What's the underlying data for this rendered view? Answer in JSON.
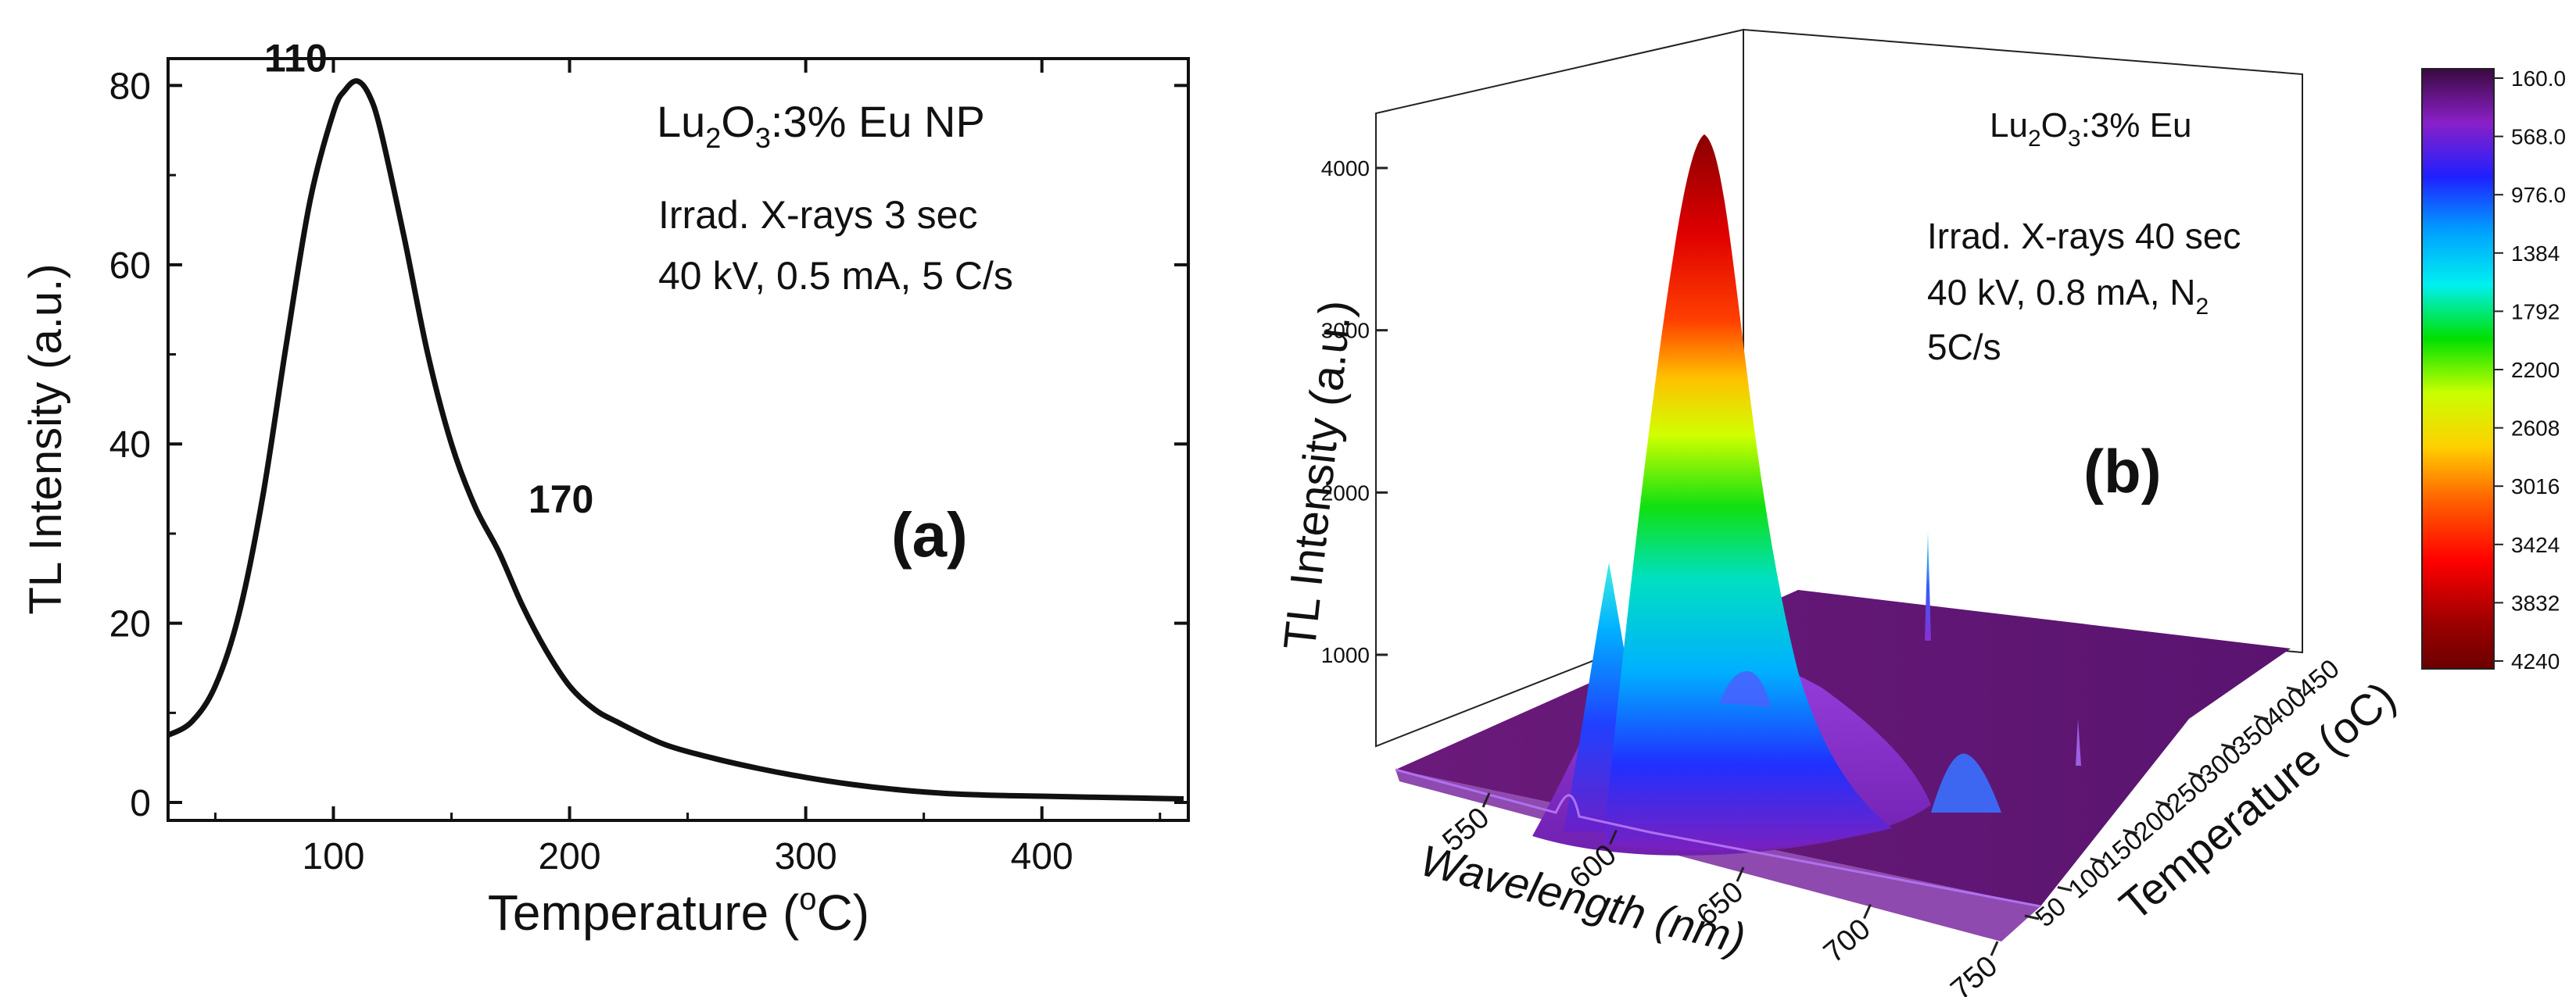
{
  "chart_data": [
    {
      "panel": "a",
      "type": "line",
      "panel_label": "(a)",
      "xlabel_main": "Temperature (",
      "xlabel_sup": "o",
      "xlabel_end": "C)",
      "ylabel": "TL Intensity (a.u.)",
      "xlim": [
        30,
        462
      ],
      "ylim": [
        -2,
        83
      ],
      "xticks": [
        100,
        200,
        300,
        400
      ],
      "yticks": [
        0,
        20,
        40,
        60,
        80
      ],
      "x": [
        30,
        40,
        50,
        60,
        70,
        80,
        90,
        100,
        105,
        110,
        115,
        120,
        130,
        140,
        150,
        160,
        170,
        180,
        190,
        200,
        210,
        220,
        240,
        260,
        280,
        300,
        320,
        340,
        360,
        380,
        400,
        420,
        440,
        460
      ],
      "y": [
        7.5,
        9,
        13,
        21,
        34,
        51,
        67,
        77,
        79.5,
        80.5,
        79,
        75,
        63,
        50,
        40,
        33,
        28,
        22,
        17,
        13,
        10.5,
        9,
        6.5,
        5,
        3.8,
        2.8,
        2.0,
        1.4,
        1.0,
        0.8,
        0.7,
        0.6,
        0.5,
        0.4
      ],
      "annotations": [
        {
          "text": "110",
          "x": 110,
          "y": 80.5
        },
        {
          "text": "170",
          "x": 170,
          "y": 28
        }
      ],
      "legend": {
        "line1_pre": "Lu",
        "line1_sub1": "2",
        "line1_mid": "O",
        "line1_sub2": "3",
        "line1_post": ":3% Eu NP",
        "line2": "Irrad. X-rays 3 sec",
        "line3": "40 kV, 0.5 mA,  5 C/s"
      }
    },
    {
      "panel": "b",
      "type": "surface3d",
      "panel_label": "(b)",
      "xlabel": "Wavelength (nm)",
      "ylabel": "Temperature (oC)",
      "zlabel": "TL Intensity (a.u.)",
      "wavelength_ticks": [
        550,
        600,
        650,
        700,
        750
      ],
      "temperature_ticks": [
        50,
        100,
        150,
        200,
        250,
        300,
        350,
        400,
        450
      ],
      "intensity_ticks": [
        1000,
        2000,
        3000,
        4000
      ],
      "peaks": [
        {
          "wavelength_nm": 611,
          "temperature_C": 110,
          "intensity": 4180
        },
        {
          "wavelength_nm": 592,
          "temperature_C": 110,
          "intensity": 1500
        },
        {
          "wavelength_nm": 710,
          "temperature_C": 110,
          "intensity": 620
        },
        {
          "wavelength_nm": 705,
          "temperature_C": 430,
          "intensity": 1700
        }
      ],
      "colorbar": {
        "labels": [
          "160.0",
          "568.0",
          "976.0",
          "1384",
          "1792",
          "2200",
          "2608",
          "3016",
          "3424",
          "3832",
          "4240"
        ],
        "colors": [
          "#3a0a3f",
          "#8a20c8",
          "#2020ff",
          "#00a0ff",
          "#00f0f0",
          "#00e000",
          "#c8ff00",
          "#ffd000",
          "#ff6000",
          "#ff0000",
          "#a00000",
          "#6a0000"
        ]
      },
      "legend": {
        "line1_pre": "Lu",
        "line1_sub1": "2",
        "line1_mid": "O",
        "line1_sub2": "3",
        "line1_post": ":3% Eu",
        "line2": "Irrad. X-rays 40 sec",
        "line3_pre": "40 kV, 0.8 mA, N",
        "line3_sub": "2",
        "line4": "5C/s"
      }
    }
  ]
}
